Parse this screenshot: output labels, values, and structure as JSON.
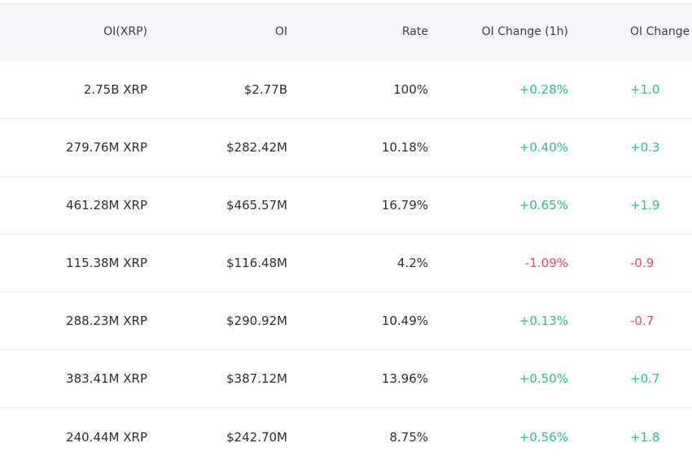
{
  "colors": {
    "positive": "#2ebd85",
    "negative": "#f6465d",
    "header_bg": "#f4f6f9"
  },
  "header": {
    "col_oi_xrp": "OI(XRP)",
    "col_oi": "OI",
    "col_rate": "Rate",
    "col_change_1h": "OI Change (1h)",
    "col_change_2": "OI Change ("
  },
  "rows": [
    {
      "oi_xrp": "2.75B XRP",
      "oi": "$2.77B",
      "rate": "100%",
      "change_1h": "+0.28%",
      "change_2": "+1.0"
    },
    {
      "oi_xrp": "279.76M XRP",
      "oi": "$282.42M",
      "rate": "10.18%",
      "change_1h": "+0.40%",
      "change_2": "+0.3"
    },
    {
      "oi_xrp": "461.28M XRP",
      "oi": "$465.57M",
      "rate": "16.79%",
      "change_1h": "+0.65%",
      "change_2": "+1.9"
    },
    {
      "oi_xrp": "115.38M XRP",
      "oi": "$116.48M",
      "rate": "4.2%",
      "change_1h": "-1.09%",
      "change_2": "-0.9"
    },
    {
      "oi_xrp": "288.23M XRP",
      "oi": "$290.92M",
      "rate": "10.49%",
      "change_1h": "+0.13%",
      "change_2": "-0.7"
    },
    {
      "oi_xrp": "383.41M XRP",
      "oi": "$387.12M",
      "rate": "13.96%",
      "change_1h": "+0.50%",
      "change_2": "+0.7"
    },
    {
      "oi_xrp": "240.44M XRP",
      "oi": "$242.70M",
      "rate": "8.75%",
      "change_1h": "+0.56%",
      "change_2": "+1.8"
    }
  ]
}
